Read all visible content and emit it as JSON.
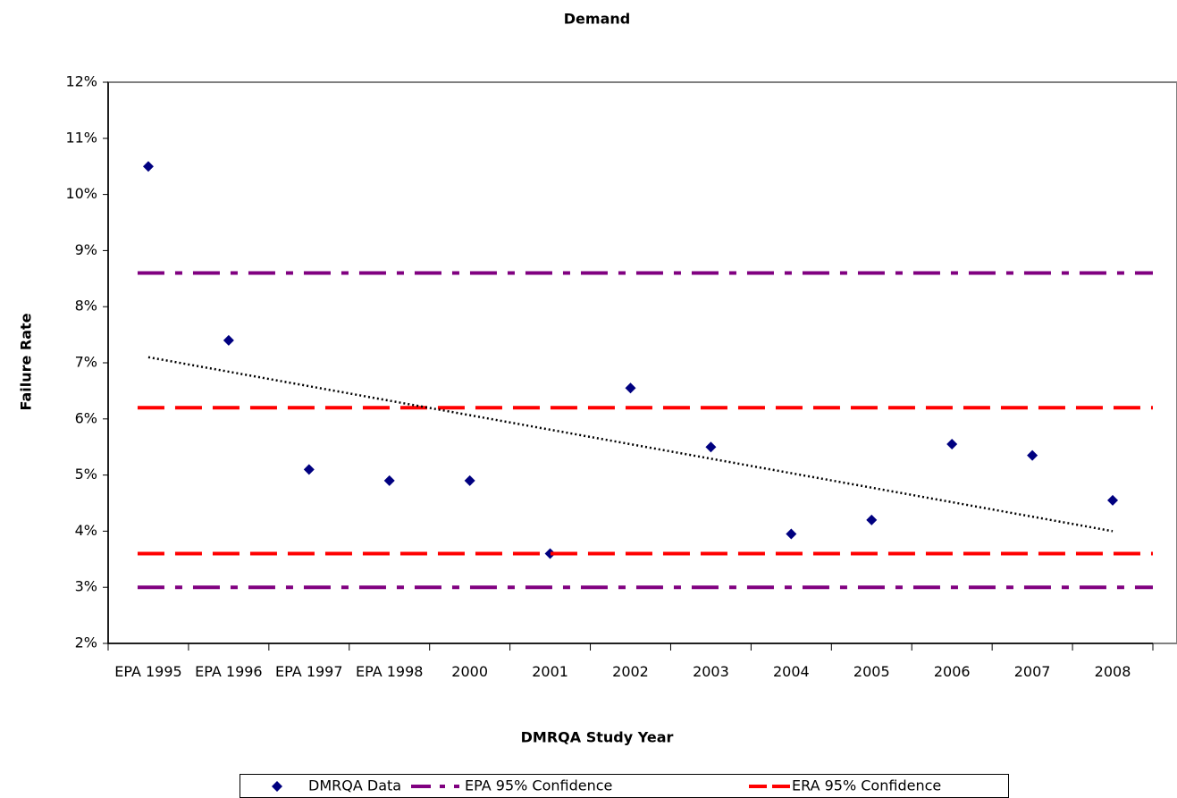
{
  "chart_data": {
    "type": "scatter",
    "title": "Demand",
    "xlabel": "DMRQA Study Year",
    "ylabel": "Failure Rate",
    "categories": [
      "EPA 1995",
      "EPA 1996",
      "EPA 1997",
      "EPA 1998",
      "2000",
      "2001",
      "2002",
      "2003",
      "2004",
      "2005",
      "2006",
      "2007",
      "2008"
    ],
    "ylim": [
      2,
      12
    ],
    "yticks": [
      {
        "value": 2,
        "label": "2%"
      },
      {
        "value": 3,
        "label": "3%"
      },
      {
        "value": 4,
        "label": "4%"
      },
      {
        "value": 5,
        "label": "5%"
      },
      {
        "value": 6,
        "label": "6%"
      },
      {
        "value": 7,
        "label": "7%"
      },
      {
        "value": 8,
        "label": "8%"
      },
      {
        "value": 9,
        "label": "9%"
      },
      {
        "value": 10,
        "label": "10%"
      },
      {
        "value": 11,
        "label": "11%"
      },
      {
        "value": 12,
        "label": "12%"
      }
    ],
    "series": [
      {
        "name": "DMRQA Data",
        "color": "#000080",
        "marker": "diamond",
        "values": [
          10.5,
          7.4,
          5.1,
          4.9,
          4.9,
          3.6,
          6.55,
          5.5,
          3.95,
          4.2,
          5.55,
          5.35,
          4.55
        ]
      },
      {
        "name": "EPA 95% Confidence",
        "color": "#800080",
        "style": "dashdot",
        "values": [
          8.6,
          3.0
        ]
      },
      {
        "name": "ERA 95% Confidence",
        "color": "#ff0000",
        "style": "dash",
        "values": [
          6.2,
          3.6
        ]
      }
    ],
    "trendline": {
      "color": "#000000",
      "values": [
        7.1,
        4.0
      ]
    },
    "legend": "bottom"
  }
}
